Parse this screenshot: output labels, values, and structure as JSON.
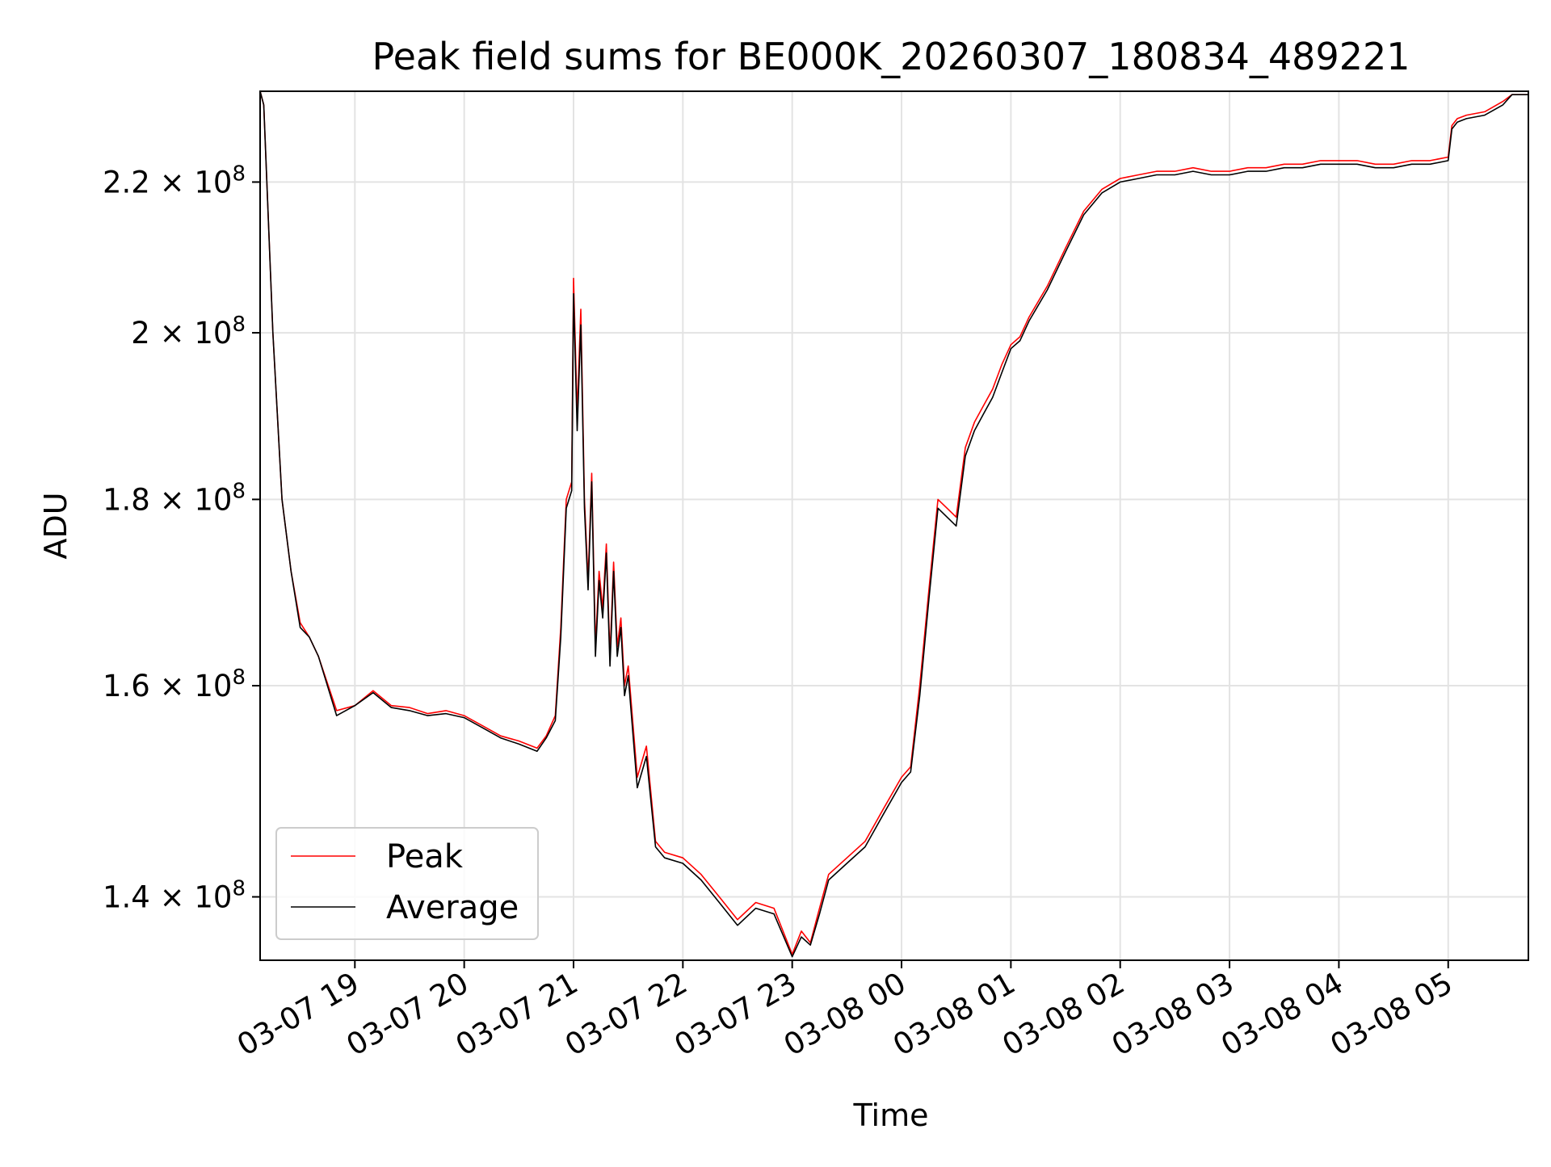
{
  "chart_data": {
    "type": "line",
    "title": "Peak field sums for BE000K_20260307_180834_489221",
    "xlabel": "Time",
    "ylabel": "ADU",
    "y_scale": "log",
    "ylim": [
      134500000,
      233000000
    ],
    "xlim": [
      "03-07 18:08",
      "03-08 05:44"
    ],
    "grid": true,
    "legend_position": "lower-left",
    "x_tick_labels": [
      "03-07 19",
      "03-07 20",
      "03-07 21",
      "03-07 22",
      "03-07 23",
      "03-08 00",
      "03-08 01",
      "03-08 02",
      "03-08 03",
      "03-08 04",
      "03-08 05"
    ],
    "y_ticks": [
      {
        "value": 140000000,
        "mantissa": "1.4",
        "base": "10",
        "exp": "8"
      },
      {
        "value": 160000000,
        "mantissa": "1.6",
        "base": "10",
        "exp": "8"
      },
      {
        "value": 180000000,
        "mantissa": "1.8",
        "base": "10",
        "exp": "8"
      },
      {
        "value": 200000000,
        "mantissa": "2",
        "base": "10",
        "exp": "8"
      },
      {
        "value": 220000000,
        "mantissa": "2.2",
        "base": "10",
        "exp": "8"
      }
    ],
    "x": [
      "03-07 18:08",
      "03-07 18:10",
      "03-07 18:15",
      "03-07 18:20",
      "03-07 18:25",
      "03-07 18:30",
      "03-07 18:35",
      "03-07 18:40",
      "03-07 18:50",
      "03-07 19:00",
      "03-07 19:10",
      "03-07 19:20",
      "03-07 19:30",
      "03-07 19:40",
      "03-07 19:50",
      "03-07 20:00",
      "03-07 20:10",
      "03-07 20:20",
      "03-07 20:30",
      "03-07 20:40",
      "03-07 20:45",
      "03-07 20:50",
      "03-07 20:53",
      "03-07 20:56",
      "03-07 20:59",
      "03-07 21:00",
      "03-07 21:02",
      "03-07 21:04",
      "03-07 21:06",
      "03-07 21:08",
      "03-07 21:10",
      "03-07 21:12",
      "03-07 21:14",
      "03-07 21:16",
      "03-07 21:18",
      "03-07 21:20",
      "03-07 21:22",
      "03-07 21:24",
      "03-07 21:26",
      "03-07 21:28",
      "03-07 21:30",
      "03-07 21:35",
      "03-07 21:40",
      "03-07 21:45",
      "03-07 21:50",
      "03-07 22:00",
      "03-07 22:10",
      "03-07 22:20",
      "03-07 22:30",
      "03-07 22:40",
      "03-07 22:50",
      "03-07 23:00",
      "03-07 23:05",
      "03-07 23:10",
      "03-07 23:15",
      "03-07 23:20",
      "03-07 23:30",
      "03-07 23:40",
      "03-07 23:50",
      "03-08 00:00",
      "03-08 00:05",
      "03-08 00:10",
      "03-08 00:15",
      "03-08 00:20",
      "03-08 00:25",
      "03-08 00:30",
      "03-08 00:35",
      "03-08 00:40",
      "03-08 00:45",
      "03-08 00:50",
      "03-08 00:55",
      "03-08 01:00",
      "03-08 01:05",
      "03-08 01:10",
      "03-08 01:20",
      "03-08 01:30",
      "03-08 01:40",
      "03-08 01:50",
      "03-08 02:00",
      "03-08 02:10",
      "03-08 02:20",
      "03-08 02:30",
      "03-08 02:40",
      "03-08 02:50",
      "03-08 03:00",
      "03-08 03:10",
      "03-08 03:20",
      "03-08 03:30",
      "03-08 03:40",
      "03-08 03:50",
      "03-08 04:00",
      "03-08 04:10",
      "03-08 04:20",
      "03-08 04:30",
      "03-08 04:40",
      "03-08 04:50",
      "03-08 05:00",
      "03-08 05:02",
      "03-08 05:05",
      "03-08 05:10",
      "03-08 05:20",
      "03-08 05:30",
      "03-08 05:35",
      "03-08 05:40",
      "03-08 05:44"
    ],
    "series": [
      {
        "name": "Peak",
        "color": "#ff0000",
        "values": [
          233000000,
          231000000,
          200000000,
          180000000,
          172000000,
          166500000,
          165000000,
          163000000,
          157500000,
          158000000,
          159500000,
          158000000,
          157800000,
          157200000,
          157500000,
          157000000,
          156000000,
          155000000,
          154500000,
          153800000,
          155000000,
          157000000,
          166000000,
          180000000,
          182000000,
          207000000,
          190000000,
          203000000,
          180000000,
          171000000,
          183000000,
          164000000,
          172000000,
          168000000,
          175000000,
          163000000,
          173000000,
          164000000,
          167000000,
          160000000,
          162000000,
          151000000,
          154000000,
          145000000,
          144000000,
          143500000,
          142000000,
          140000000,
          138000000,
          139500000,
          139000000,
          135000000,
          137000000,
          136000000,
          139000000,
          142000000,
          143500000,
          145000000,
          148000000,
          151000000,
          152000000,
          160000000,
          170000000,
          180000000,
          179000000,
          178000000,
          186000000,
          189000000,
          191000000,
          193000000,
          196000000,
          198500000,
          199500000,
          202000000,
          206000000,
          211000000,
          216000000,
          219000000,
          220500000,
          221000000,
          221500000,
          221500000,
          222000000,
          221500000,
          221500000,
          222000000,
          222000000,
          222500000,
          222500000,
          223000000,
          223000000,
          223000000,
          222500000,
          222500000,
          223000000,
          223000000,
          223500000,
          228000000,
          229000000,
          229500000,
          230000000,
          231500000,
          232500000,
          232500000,
          232500000
        ]
      },
      {
        "name": "Average",
        "color": "#000000",
        "values": [
          233000000,
          231000000,
          200000000,
          180000000,
          172000000,
          166000000,
          165000000,
          163000000,
          157000000,
          158000000,
          159300000,
          157800000,
          157500000,
          157000000,
          157200000,
          156800000,
          155800000,
          154800000,
          154200000,
          153500000,
          154800000,
          156500000,
          165000000,
          179000000,
          181000000,
          205000000,
          188000000,
          201000000,
          179000000,
          170000000,
          182000000,
          163000000,
          171000000,
          167000000,
          174000000,
          162000000,
          172000000,
          163000000,
          166000000,
          159000000,
          161000000,
          150000000,
          153000000,
          144500000,
          143500000,
          143000000,
          141500000,
          139500000,
          137500000,
          139000000,
          138500000,
          134800000,
          136500000,
          135800000,
          138500000,
          141500000,
          143000000,
          144500000,
          147500000,
          150500000,
          151500000,
          159000000,
          169000000,
          179000000,
          178000000,
          177000000,
          185000000,
          188000000,
          190000000,
          192000000,
          195000000,
          198000000,
          199000000,
          201500000,
          205500000,
          210500000,
          215500000,
          218500000,
          220000000,
          220500000,
          221000000,
          221000000,
          221500000,
          221000000,
          221000000,
          221500000,
          221500000,
          222000000,
          222000000,
          222500000,
          222500000,
          222500000,
          222000000,
          222000000,
          222500000,
          222500000,
          223000000,
          227500000,
          228500000,
          229000000,
          229500000,
          231000000,
          232500000,
          232500000,
          232500000
        ]
      }
    ]
  }
}
